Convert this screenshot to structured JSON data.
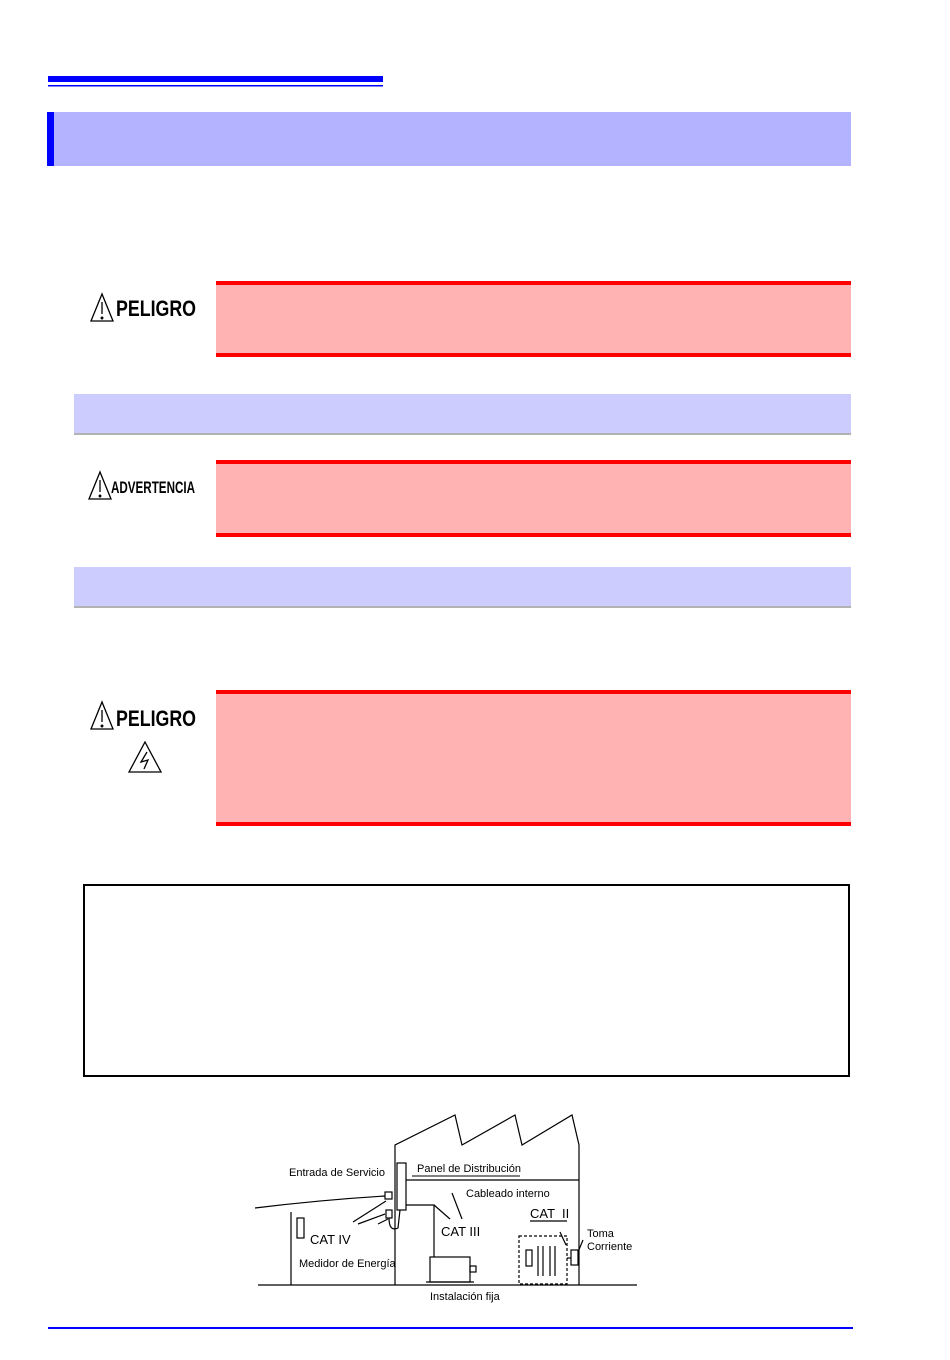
{
  "warnings": [
    {
      "label": "PELIGRO"
    },
    {
      "label": "ADVERTENCIA"
    },
    {
      "label": "PELIGRO"
    }
  ],
  "diagram": {
    "service_entry": "Entrada de Servicio",
    "distribution_panel": "Panel de Distribución",
    "internal_wiring": "Cableado interno",
    "cat_iv": "CAT IV",
    "cat_iii": "CAT III",
    "cat_ii": "CAT  II",
    "outlet": [
      "Toma",
      "Corriente"
    ],
    "energy_meter": "Medidor de Energía",
    "fixed_installation": "Instalación fija"
  }
}
